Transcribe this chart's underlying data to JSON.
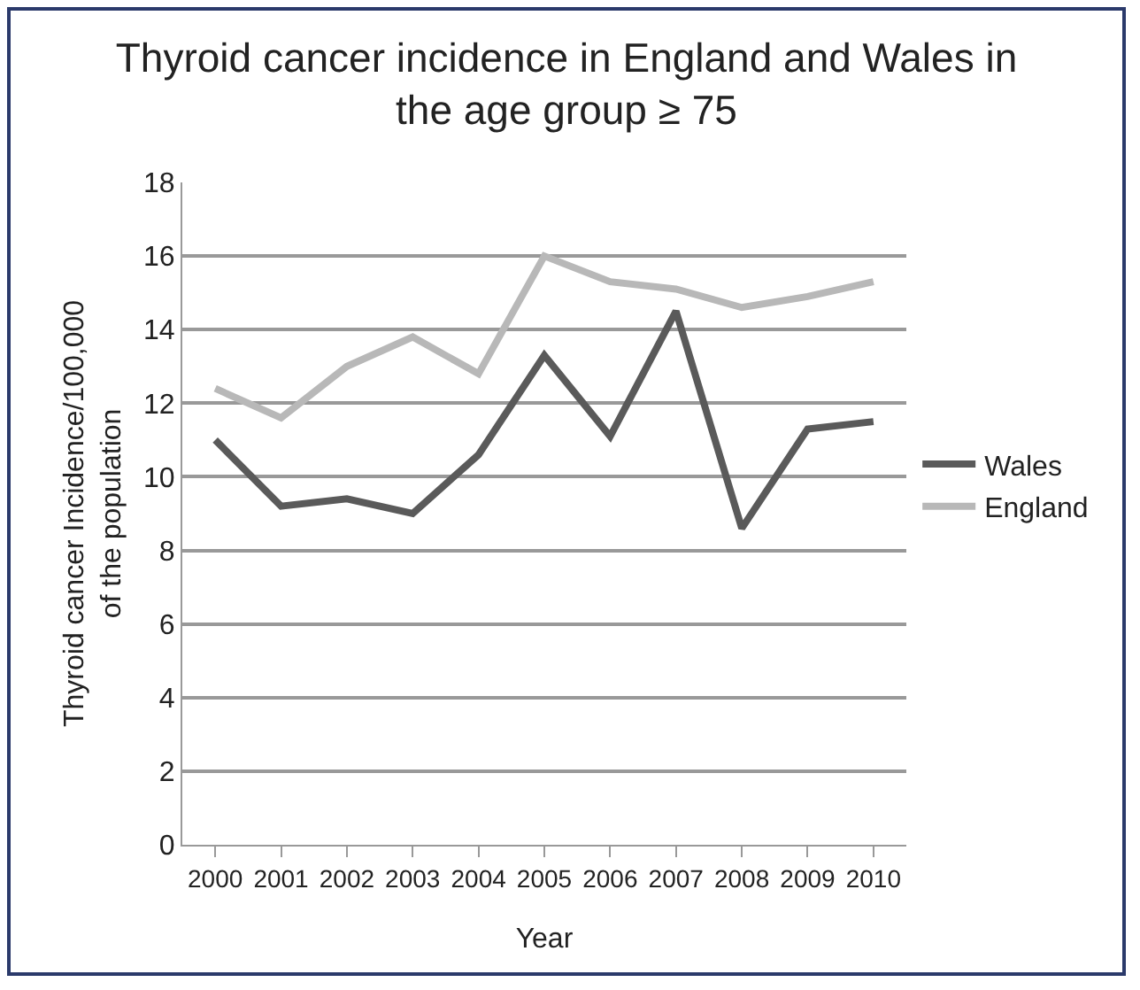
{
  "chart_data": {
    "type": "line",
    "title": "Thyroid cancer incidence in England and Wales in\nthe age group ≥ 75",
    "xlabel": "Year",
    "ylabel": "Thyroid cancer Incidence/100,000\nof the population",
    "categories": [
      "2000",
      "2001",
      "2002",
      "2003",
      "2004",
      "2005",
      "2006",
      "2007",
      "2008",
      "2009",
      "2010"
    ],
    "series": [
      {
        "name": "Wales",
        "color": "#5a5a5a",
        "values": [
          11.0,
          9.2,
          9.4,
          9.0,
          10.6,
          13.3,
          11.1,
          14.5,
          8.6,
          11.3,
          11.5
        ]
      },
      {
        "name": "England",
        "color": "#b8b8b8",
        "values": [
          12.4,
          11.6,
          13.0,
          13.8,
          12.8,
          16.0,
          15.3,
          15.1,
          14.6,
          14.9,
          15.3
        ]
      }
    ],
    "ylim": [
      0,
      18
    ],
    "yticks": [
      0,
      2,
      4,
      6,
      8,
      10,
      12,
      14,
      16,
      18
    ],
    "grid": "y",
    "legend": "right",
    "marker": "none",
    "line_style": "solid"
  }
}
